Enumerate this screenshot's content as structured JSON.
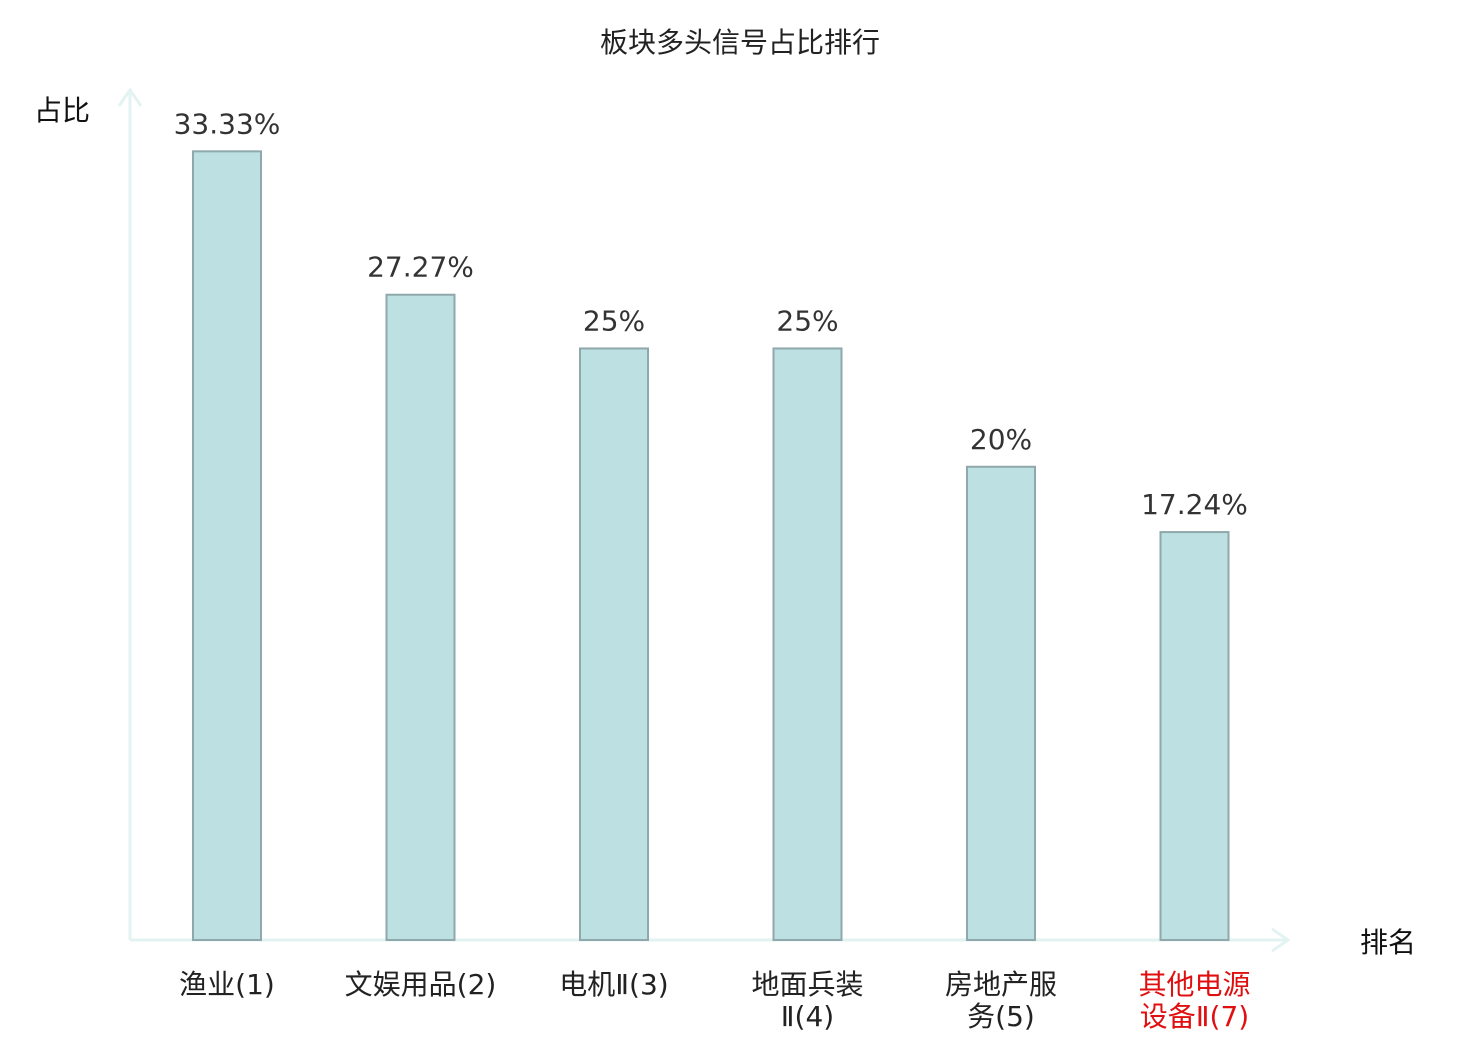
{
  "chart_data": {
    "type": "bar",
    "title": "板块多头信号占比排行",
    "ylabel": "占比",
    "xlabel": "排名",
    "ylim": [
      0,
      35.5
    ],
    "categories": [
      [
        "渔业(1)"
      ],
      [
        "文娱用品(2)"
      ],
      [
        "电机Ⅱ(3)"
      ],
      [
        "地面兵装",
        "Ⅱ(4)"
      ],
      [
        "房地产服",
        "务(5)"
      ],
      [
        "其他电源",
        "设备Ⅱ(7)"
      ]
    ],
    "values": [
      33.33,
      27.27,
      25,
      25,
      20,
      17.24
    ],
    "value_labels": [
      "33.33%",
      "27.27%",
      "25%",
      "25%",
      "20%",
      "17.24%"
    ],
    "highlight_index": 5,
    "colors": {
      "bar_fill": "#bde0e3",
      "bar_stroke": "#8fa8ab",
      "axis": "#e3f3f1",
      "highlight_text": "#e01010"
    }
  }
}
